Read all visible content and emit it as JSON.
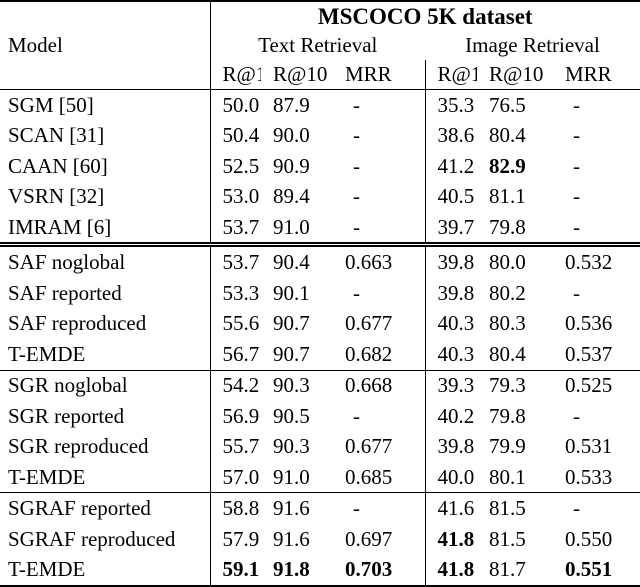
{
  "table": {
    "title": "MSCOCO 5K dataset",
    "model_header": "Model",
    "group_headers": [
      {
        "label": "Text Retrieval"
      },
      {
        "label": "Image Retrieval"
      }
    ],
    "subheaders": [
      "R@1",
      "R@10",
      "MRR",
      "R@1",
      "R@10",
      "MRR"
    ],
    "groups": [
      {
        "rows": [
          {
            "model": "SGM [50]",
            "values": [
              "50.0",
              "87.9",
              "-",
              "35.3",
              "76.5",
              "-"
            ]
          },
          {
            "model": "SCAN [31]",
            "values": [
              "50.4",
              "90.0",
              "-",
              "38.6",
              "80.4",
              "-"
            ]
          },
          {
            "model": "CAAN [60]",
            "values": [
              "52.5",
              "90.9",
              "-",
              "41.2",
              "82.9",
              "-"
            ],
            "bold": [
              false,
              false,
              false,
              false,
              true,
              false
            ]
          },
          {
            "model": "VSRN [32]",
            "values": [
              "53.0",
              "89.4",
              "-",
              "40.5",
              "81.1",
              "-"
            ]
          },
          {
            "model": "IMRAM [6]",
            "values": [
              "53.7",
              "91.0",
              "-",
              "39.7",
              "79.8",
              "-"
            ]
          }
        ]
      },
      {
        "rows": [
          {
            "model": "SAF noglobal",
            "values": [
              "53.7",
              "90.4",
              "0.663",
              "39.8",
              "80.0",
              "0.532"
            ]
          },
          {
            "model": "SAF reported",
            "values": [
              "53.3",
              "90.1",
              "-",
              "39.8",
              "80.2",
              "-"
            ]
          },
          {
            "model": "SAF reproduced",
            "values": [
              "55.6",
              "90.7",
              "0.677",
              "40.3",
              "80.3",
              "0.536"
            ]
          },
          {
            "model": "T-EMDE",
            "values": [
              "56.7",
              "90.7",
              "0.682",
              "40.3",
              "80.4",
              "0.537"
            ]
          }
        ]
      },
      {
        "rows": [
          {
            "model": "SGR noglobal",
            "values": [
              "54.2",
              "90.3",
              "0.668",
              "39.3",
              "79.3",
              "0.525"
            ]
          },
          {
            "model": "SGR reported",
            "values": [
              "56.9",
              "90.5",
              "-",
              "40.2",
              "79.8",
              "-"
            ]
          },
          {
            "model": "SGR reproduced",
            "values": [
              "55.7",
              "90.3",
              "0.677",
              "39.8",
              "79.9",
              "0.531"
            ]
          },
          {
            "model": "T-EMDE",
            "values": [
              "57.0",
              "91.0",
              "0.685",
              "40.0",
              "80.1",
              "0.533"
            ]
          }
        ]
      },
      {
        "rows": [
          {
            "model": "SGRAF reported",
            "values": [
              "58.8",
              "91.6",
              "-",
              "41.6",
              "81.5",
              "-"
            ]
          },
          {
            "model": "SGRAF reproduced",
            "values": [
              "57.9",
              "91.6",
              "0.697",
              "41.8",
              "81.5",
              "0.550"
            ],
            "bold": [
              false,
              false,
              false,
              true,
              false,
              false
            ]
          },
          {
            "model": "T-EMDE",
            "values": [
              "59.1",
              "91.8",
              "0.703",
              "41.8",
              "81.7",
              "0.551"
            ],
            "bold": [
              true,
              true,
              true,
              true,
              false,
              true
            ]
          }
        ]
      }
    ]
  }
}
